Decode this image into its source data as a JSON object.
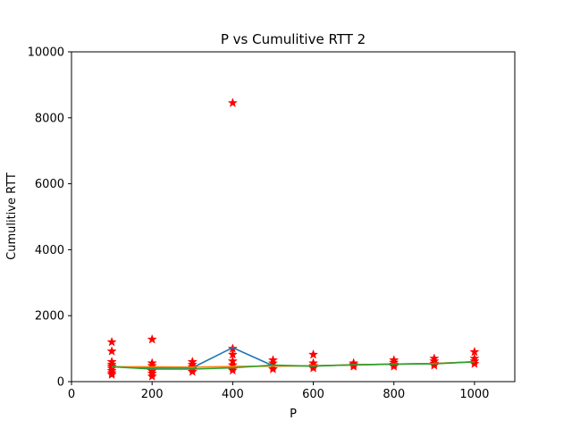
{
  "chart_data": {
    "type": "scatter",
    "title": "P vs Cumulitive RTT 2",
    "xlabel": "P",
    "ylabel": "Cumulitive RTT",
    "xlim": [
      0,
      1100
    ],
    "ylim": [
      0,
      10000
    ],
    "xticks": [
      0,
      200,
      400,
      600,
      800,
      1000
    ],
    "yticks": [
      0,
      2000,
      4000,
      6000,
      8000,
      10000
    ],
    "grid": false,
    "scatter_color": "#ff0000",
    "scatter_points": [
      {
        "x": 100,
        "y": 1200
      },
      {
        "x": 100,
        "y": 920
      },
      {
        "x": 100,
        "y": 600
      },
      {
        "x": 100,
        "y": 520
      },
      {
        "x": 100,
        "y": 460
      },
      {
        "x": 100,
        "y": 400
      },
      {
        "x": 100,
        "y": 330
      },
      {
        "x": 100,
        "y": 260
      },
      {
        "x": 100,
        "y": 210
      },
      {
        "x": 200,
        "y": 1280
      },
      {
        "x": 200,
        "y": 560
      },
      {
        "x": 200,
        "y": 480
      },
      {
        "x": 200,
        "y": 400
      },
      {
        "x": 200,
        "y": 320
      },
      {
        "x": 200,
        "y": 250
      },
      {
        "x": 200,
        "y": 160
      },
      {
        "x": 300,
        "y": 600
      },
      {
        "x": 300,
        "y": 520
      },
      {
        "x": 300,
        "y": 450
      },
      {
        "x": 300,
        "y": 380
      },
      {
        "x": 300,
        "y": 300
      },
      {
        "x": 400,
        "y": 8450
      },
      {
        "x": 400,
        "y": 1000
      },
      {
        "x": 400,
        "y": 820
      },
      {
        "x": 400,
        "y": 620
      },
      {
        "x": 400,
        "y": 500
      },
      {
        "x": 400,
        "y": 420
      },
      {
        "x": 400,
        "y": 340
      },
      {
        "x": 500,
        "y": 650
      },
      {
        "x": 500,
        "y": 560
      },
      {
        "x": 500,
        "y": 460
      },
      {
        "x": 500,
        "y": 380
      },
      {
        "x": 600,
        "y": 820
      },
      {
        "x": 600,
        "y": 560
      },
      {
        "x": 600,
        "y": 480
      },
      {
        "x": 600,
        "y": 410
      },
      {
        "x": 700,
        "y": 560
      },
      {
        "x": 700,
        "y": 510
      },
      {
        "x": 700,
        "y": 460
      },
      {
        "x": 800,
        "y": 650
      },
      {
        "x": 800,
        "y": 580
      },
      {
        "x": 800,
        "y": 520
      },
      {
        "x": 800,
        "y": 460
      },
      {
        "x": 900,
        "y": 700
      },
      {
        "x": 900,
        "y": 620
      },
      {
        "x": 900,
        "y": 550
      },
      {
        "x": 900,
        "y": 490
      },
      {
        "x": 1000,
        "y": 900
      },
      {
        "x": 1000,
        "y": 700
      },
      {
        "x": 1000,
        "y": 620
      },
      {
        "x": 1000,
        "y": 540
      }
    ],
    "x": [
      100,
      200,
      300,
      400,
      500,
      600,
      700,
      800,
      900,
      1000
    ],
    "series": [
      {
        "color": "#1f77b4",
        "values": [
          450,
          420,
          420,
          1030,
          480,
          480,
          510,
          530,
          550,
          600
        ]
      },
      {
        "color": "#ff7f0e",
        "values": [
          450,
          450,
          440,
          460,
          470,
          480,
          510,
          530,
          550,
          600
        ]
      },
      {
        "color": "#2ca02c",
        "values": [
          450,
          380,
          380,
          420,
          500,
          470,
          510,
          530,
          540,
          600
        ]
      }
    ]
  }
}
